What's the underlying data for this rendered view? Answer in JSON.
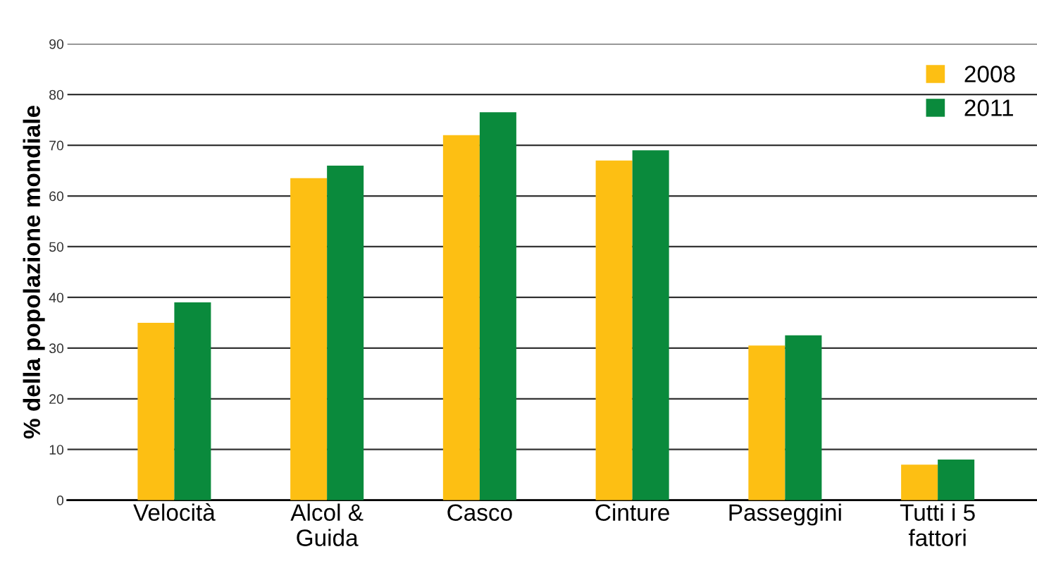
{
  "chart_data": {
    "type": "bar",
    "ylabel": "% della popolazione mondiale",
    "categories": [
      "Velocità",
      "Alcol &\nGuida",
      "Casco",
      "Cinture",
      "Passeggini",
      "Tutti i 5\nfattori"
    ],
    "series": [
      {
        "name": "2008",
        "color": "#fdbf13",
        "values": [
          35,
          63.5,
          72,
          67,
          30.5,
          7
        ]
      },
      {
        "name": "2011",
        "color": "#0a8a3c",
        "values": [
          39,
          66,
          76.5,
          69,
          32.5,
          8
        ]
      }
    ],
    "ylim": [
      0,
      90
    ],
    "yticks": [
      0,
      10,
      20,
      30,
      40,
      50,
      60,
      70,
      80,
      90
    ],
    "grid": "y",
    "legend": "top right"
  }
}
